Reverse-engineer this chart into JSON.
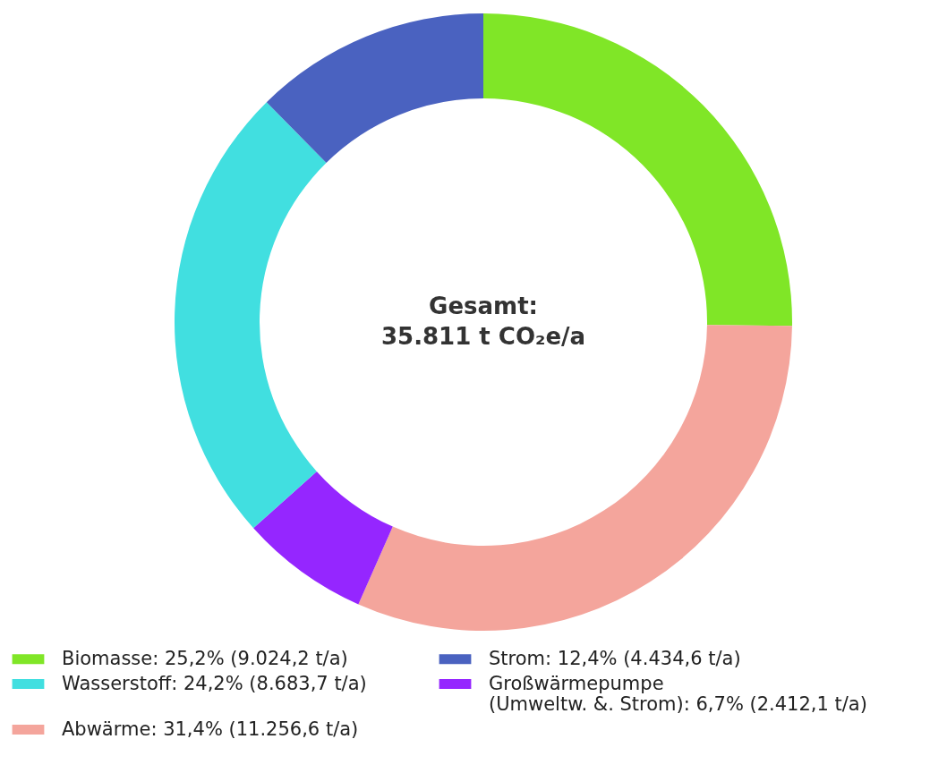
{
  "chart_data": {
    "type": "donut",
    "categories": [
      "Biomasse: 25,2% (9.024,2 t/a)",
      "Abwärme: 31,4% (11.256,6 t/a)",
      "Großwärmepumpe (Umweltw. &. Strom): 6,7% (2.412,1 t/a)",
      "Wasserstoff: 24,2% (8.683,7 t/a)",
      "Strom: 12,4% (4.434,6 t/a)"
    ],
    "values": [
      9024.2,
      11256.6,
      2412.1,
      8683.7,
      4434.6
    ],
    "colors": [
      "#80e627",
      "#f4a59c",
      "#9526ff",
      "#41dfe0",
      "#4a62c0"
    ],
    "annotations": [
      "Gesamt:",
      "35.811 t CO₂e/a"
    ],
    "legend": "bottom"
  }
}
